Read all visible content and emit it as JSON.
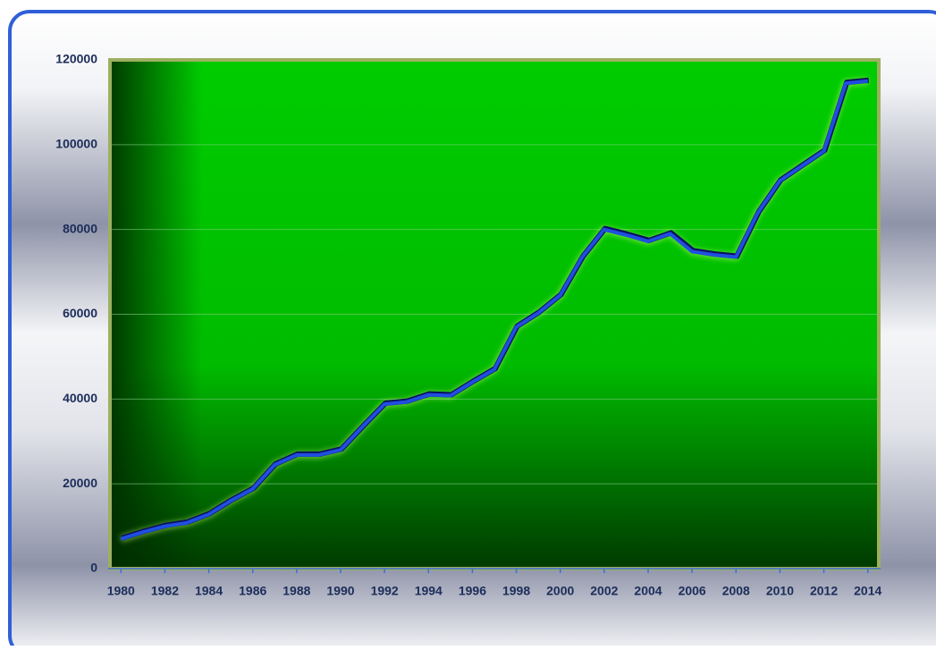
{
  "chart_data": {
    "type": "line",
    "x": [
      1980,
      1981,
      1982,
      1983,
      1984,
      1985,
      1986,
      1987,
      1988,
      1989,
      1990,
      1991,
      1992,
      1993,
      1994,
      1995,
      1996,
      1997,
      1998,
      1999,
      2000,
      2001,
      2002,
      2003,
      2004,
      2005,
      2006,
      2007,
      2008,
      2009,
      2010,
      2011,
      2012,
      2013,
      2014
    ],
    "values": [
      7000,
      8600,
      10000,
      10800,
      12800,
      16000,
      18800,
      24500,
      26800,
      26800,
      28000,
      33500,
      38800,
      39300,
      41000,
      40800,
      44000,
      47000,
      57000,
      60300,
      64500,
      73500,
      80000,
      78700,
      77200,
      79000,
      74800,
      74000,
      73500,
      84000,
      91500,
      95000,
      98500,
      114500,
      115000
    ],
    "color": "#1f4fe0",
    "xlim": [
      1979.5,
      2014.5
    ],
    "xticks": [
      1980,
      1982,
      1984,
      1986,
      1988,
      1990,
      1992,
      1994,
      1996,
      1998,
      2000,
      2002,
      2004,
      2006,
      2008,
      2010,
      2012,
      2014
    ],
    "ylim": [
      0,
      120000
    ],
    "yticks": [
      0,
      20000,
      40000,
      60000,
      80000,
      100000,
      120000
    ],
    "grid": true
  }
}
